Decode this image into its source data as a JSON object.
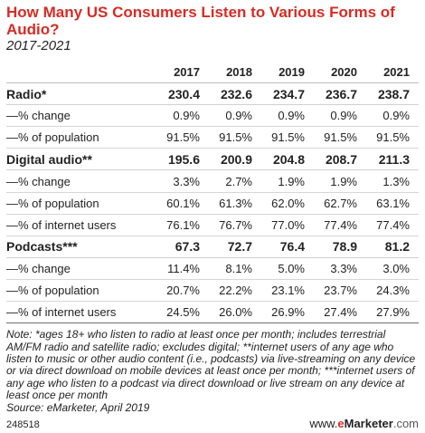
{
  "chart_data": {
    "type": "table",
    "title": "How Many US Consumers Listen to Various Forms of Audio?",
    "subtitle": "2017-2021",
    "columns": [
      "2017",
      "2018",
      "2019",
      "2020",
      "2021"
    ],
    "rows": [
      {
        "label": "Radio*",
        "kind": "header",
        "values": [
          "230.4",
          "232.6",
          "234.7",
          "236.7",
          "238.7"
        ]
      },
      {
        "label": "—% change",
        "kind": "sub",
        "values": [
          "0.9%",
          "0.9%",
          "0.9%",
          "0.9%",
          "0.9%"
        ]
      },
      {
        "label": "—% of population",
        "kind": "sub",
        "values": [
          "91.5%",
          "91.5%",
          "91.5%",
          "91.5%",
          "91.5%"
        ]
      },
      {
        "label": "Digital audio**",
        "kind": "header",
        "values": [
          "195.6",
          "200.9",
          "204.8",
          "208.7",
          "211.3"
        ]
      },
      {
        "label": "—% change",
        "kind": "sub",
        "values": [
          "3.3%",
          "2.7%",
          "1.9%",
          "1.9%",
          "1.3%"
        ]
      },
      {
        "label": "—% of population",
        "kind": "sub",
        "values": [
          "60.1%",
          "61.3%",
          "62.0%",
          "62.7%",
          "63.1%"
        ]
      },
      {
        "label": "—% of internet users",
        "kind": "sub",
        "values": [
          "76.1%",
          "76.7%",
          "77.0%",
          "77.4%",
          "77.4%"
        ]
      },
      {
        "label": "Podcasts***",
        "kind": "header",
        "values": [
          "67.3",
          "72.7",
          "76.4",
          "78.9",
          "81.2"
        ]
      },
      {
        "label": "—% change",
        "kind": "sub",
        "values": [
          "11.4%",
          "8.1%",
          "5.0%",
          "3.3%",
          "3.0%"
        ]
      },
      {
        "label": "—% of population",
        "kind": "sub",
        "values": [
          "20.7%",
          "22.2%",
          "23.1%",
          "23.7%",
          "24.3%"
        ]
      },
      {
        "label": "—% of internet users",
        "kind": "sub",
        "values": [
          "24.5%",
          "26.0%",
          "26.9%",
          "27.4%",
          "27.9%"
        ]
      }
    ]
  },
  "notes": "Note: *ages 18+ who listen to radio at least once per month; includes terrestrial AM/FM radio and satellite radio; excludes digital; **internet users of any age who listen to music or other audio content (i.e., podcasts) via live-streaming on any device or via direct download on mobile devices at least once per month; ***internet users of any age who listen to a podcast via direct download or live stream on any device at least once per month",
  "source": "Source: eMarketer, April 2019",
  "footer": {
    "chart_id": "248518",
    "brand_prefix": "www.",
    "brand_e": "e",
    "brand_name": "Marketer",
    "brand_suffix": ".com"
  }
}
